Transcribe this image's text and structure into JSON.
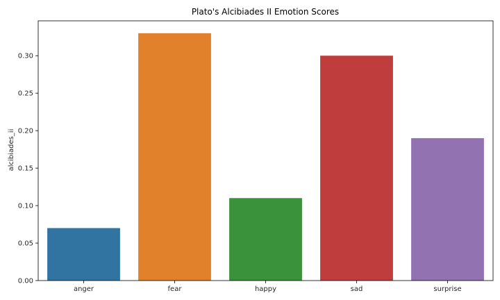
{
  "chart_data": {
    "type": "bar",
    "title": "Plato's Alcibiades II Emotion Scores",
    "xlabel": "",
    "ylabel": "alcibiades_ii",
    "categories": [
      "anger",
      "fear",
      "happy",
      "sad",
      "surprise"
    ],
    "values": [
      0.07,
      0.33,
      0.11,
      0.3,
      0.19
    ],
    "colors": [
      "#3274a1",
      "#e1812c",
      "#3a923a",
      "#c03d3e",
      "#9372b2"
    ],
    "ylim": [
      0,
      0.3465
    ],
    "yticks": [
      0.0,
      0.05,
      0.1,
      0.15,
      0.2,
      0.25,
      0.3
    ],
    "ytick_labels": [
      "0.00",
      "0.05",
      "0.10",
      "0.15",
      "0.20",
      "0.25",
      "0.30"
    ],
    "grid": false,
    "legend": "none"
  }
}
